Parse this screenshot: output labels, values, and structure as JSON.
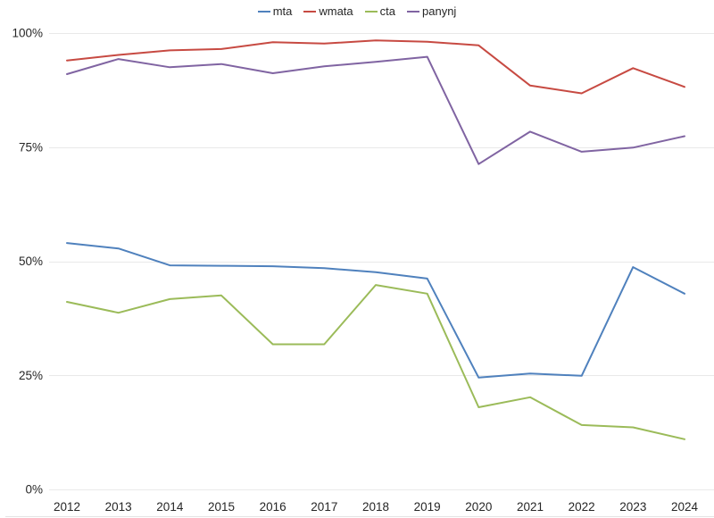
{
  "chart_data": {
    "type": "line",
    "title": "",
    "xlabel": "",
    "ylabel": "",
    "x": [
      "2012",
      "2013",
      "2014",
      "2015",
      "2016",
      "2017",
      "2018",
      "2019",
      "2020",
      "2021",
      "2022",
      "2023",
      "2024"
    ],
    "series": [
      {
        "name": "mta",
        "color": "#4F81BD",
        "values": [
          54.0,
          52.8,
          49.1,
          49.0,
          48.9,
          48.5,
          47.6,
          46.2,
          24.5,
          25.4,
          24.9,
          48.7,
          42.9
        ]
      },
      {
        "name": "wmata",
        "color": "#C74A42",
        "values": [
          94.0,
          95.2,
          96.2,
          96.5,
          98.0,
          97.7,
          98.4,
          98.1,
          97.3,
          88.5,
          86.8,
          92.3,
          88.2
        ]
      },
      {
        "name": "cta",
        "color": "#9BBB59",
        "values": [
          41.1,
          38.7,
          41.7,
          42.5,
          31.8,
          31.8,
          44.8,
          42.9,
          18.0,
          20.2,
          14.1,
          13.6,
          11.0
        ]
      },
      {
        "name": "panynj",
        "color": "#8064A2",
        "values": [
          91.0,
          94.3,
          92.5,
          93.2,
          91.2,
          92.7,
          93.7,
          94.8,
          71.3,
          78.4,
          74.0,
          74.9,
          77.4
        ]
      }
    ],
    "ylim": [
      0,
      100
    ],
    "yticks": [
      {
        "value": 0,
        "label": "0%"
      },
      {
        "value": 25,
        "label": "25%"
      },
      {
        "value": 50,
        "label": "50%"
      },
      {
        "value": 75,
        "label": "75%"
      },
      {
        "value": 100,
        "label": "100%"
      }
    ],
    "grid": "horizontal",
    "legend_position": "top-center"
  },
  "colors": {
    "background": "#ffffff",
    "gridline": "#e9e9e9",
    "bottom_border": "#e3e3e3",
    "tick_text": "#262626"
  }
}
